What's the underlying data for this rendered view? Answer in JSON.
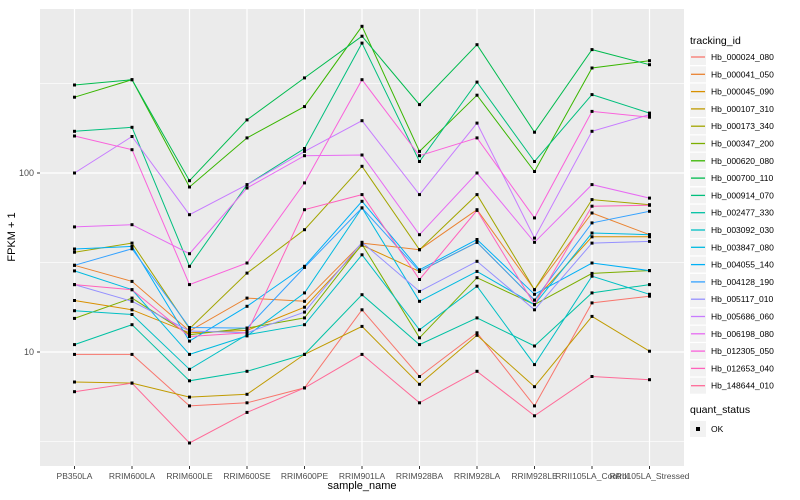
{
  "figure": {
    "background": "#FFFFFF",
    "panel_background": "#EBEBEB",
    "grid_color": "#FFFFFF",
    "axis_text_color": "#4D4D4D",
    "title_text_color": "#000000",
    "point_color": "#000000",
    "legend_key_background": "#F2F2F2"
  },
  "chart_data": {
    "type": "line",
    "title": "",
    "xlabel": "sample_name",
    "ylabel": "FPKM + 1",
    "x_scale": "discrete",
    "y_scale": "log10",
    "ylim": [
      2.3,
      814
    ],
    "y_major_ticks": [
      10,
      100
    ],
    "y_major_tick_labels": [
      "10",
      "100"
    ],
    "y_minor_ticks": [
      3.16,
      31.6,
      316
    ],
    "grid": "on",
    "point_shape": "square",
    "legend_position": "right",
    "legend_color_title": "tracking_id",
    "legend_shape_title": "quant_status",
    "legend_shape_label": "OK",
    "categories": [
      "PB350LA",
      "RRIM600LA",
      "RRIM600LE",
      "RRIM600SE",
      "RRIM600PE",
      "RRIM901LA",
      "RRIM928BA",
      "RRIM928LA",
      "RRIM928LE",
      "RRII105LA_Control",
      "RRII105LA_Stressed"
    ],
    "series": [
      {
        "name": "Hb_000024_080",
        "color": "#F8766D",
        "values": [
          9.7,
          9.7,
          5.0,
          5.2,
          6.3,
          17.2,
          7.3,
          12.8,
          5.0,
          18.8,
          20.5
        ]
      },
      {
        "name": "Hb_000041_050",
        "color": "#EA8331",
        "values": [
          30.5,
          24.8,
          13.1,
          20.0,
          19.2,
          40.6,
          37.3,
          62.4,
          22.3,
          59.8,
          45.2
        ]
      },
      {
        "name": "Hb_000045_090",
        "color": "#D89000",
        "values": [
          19.4,
          17.2,
          12.8,
          13.2,
          17.8,
          39.5,
          28.2,
          41.0,
          19.5,
          44.0,
          44.0
        ]
      },
      {
        "name": "Hb_000107_310",
        "color": "#C09B00",
        "values": [
          6.8,
          6.7,
          5.6,
          5.8,
          9.7,
          13.9,
          6.6,
          12.4,
          6.4,
          15.8,
          10.1
        ]
      },
      {
        "name": "Hb_000173_340",
        "color": "#A3A500",
        "values": [
          36.1,
          40.6,
          13.5,
          27.6,
          48.2,
          109,
          37.3,
          75.7,
          22.3,
          71.0,
          66.5
        ]
      },
      {
        "name": "Hb_000347_200",
        "color": "#7CAE00",
        "values": [
          15.4,
          20.0,
          12.5,
          13.6,
          15.5,
          40.0,
          12.0,
          26.0,
          18.4,
          27.5,
          28.5
        ]
      },
      {
        "name": "Hb_000620_080",
        "color": "#39B600",
        "values": [
          265,
          332,
          83.5,
          157,
          235,
          660,
          132,
          272,
          102,
          386,
          424
        ]
      },
      {
        "name": "Hb_000700_110",
        "color": "#00BB4E",
        "values": [
          310,
          332,
          90.6,
          198,
          340,
          581,
          241,
          521,
          169,
          489,
          403
        ]
      },
      {
        "name": "Hb_000914_070",
        "color": "#00BF7D",
        "values": [
          171,
          180,
          30.1,
          86,
          137,
          532,
          116,
          322,
          116,
          274,
          216
        ]
      },
      {
        "name": "Hb_002477_330",
        "color": "#00C1A3",
        "values": [
          11.0,
          14.2,
          6.9,
          7.8,
          9.7,
          20.9,
          11.0,
          15.5,
          10.8,
          21.4,
          23.8
        ]
      },
      {
        "name": "Hb_003092_030",
        "color": "#00BFC4",
        "values": [
          17.0,
          16.2,
          8.0,
          12.5,
          14.2,
          34.9,
          13.3,
          23.3,
          8.5,
          26.5,
          21.0
        ]
      },
      {
        "name": "Hb_003847_080",
        "color": "#00BAE0",
        "values": [
          28.4,
          22.3,
          9.7,
          12.3,
          21.4,
          63.8,
          19.2,
          28.2,
          18.4,
          46.2,
          45.2
        ]
      },
      {
        "name": "Hb_004055_140",
        "color": "#00B0F6",
        "values": [
          37.6,
          38.9,
          11.5,
          18.0,
          30.1,
          69.5,
          28.8,
          42.5,
          21.0,
          31.4,
          28.5
        ]
      },
      {
        "name": "Hb_004128_190",
        "color": "#35A2FF",
        "values": [
          30.5,
          37.7,
          13.7,
          13.6,
          29.7,
          63.8,
          28.2,
          41.0,
          19.5,
          52.6,
          61.1
        ]
      },
      {
        "name": "Hb_005117_010",
        "color": "#9590FF",
        "values": [
          23.8,
          19.2,
          13.1,
          12.8,
          16.7,
          41.0,
          21.8,
          32.1,
          17.2,
          40.6,
          41.5
        ]
      },
      {
        "name": "Hb_005686_060",
        "color": "#C77CFF",
        "values": [
          100,
          160,
          58.5,
          86,
          132,
          196,
          75.7,
          190,
          43.3,
          171,
          212
        ]
      },
      {
        "name": "Hb_006198_080",
        "color": "#E76BF3",
        "values": [
          50,
          51.4,
          35.4,
          82.4,
          125,
          126,
          45.2,
          100,
          41.0,
          86.1,
          72.4
        ]
      },
      {
        "name": "Hb_012305_050",
        "color": "#FA62DB",
        "values": [
          161,
          135,
          23.8,
          31.4,
          88,
          332,
          125,
          157,
          56.1,
          221,
          205
        ]
      },
      {
        "name": "Hb_012653_040",
        "color": "#FF62BC",
        "values": [
          23.8,
          22.3,
          12.2,
          12.8,
          62.4,
          75.7,
          25.4,
          61.8,
          18.4,
          65.2,
          66.0
        ]
      },
      {
        "name": "Hb_148644_010",
        "color": "#FF6A98",
        "values": [
          6.0,
          6.7,
          3.1,
          4.6,
          6.3,
          9.7,
          5.2,
          7.8,
          4.4,
          7.3,
          7.0
        ]
      }
    ]
  }
}
